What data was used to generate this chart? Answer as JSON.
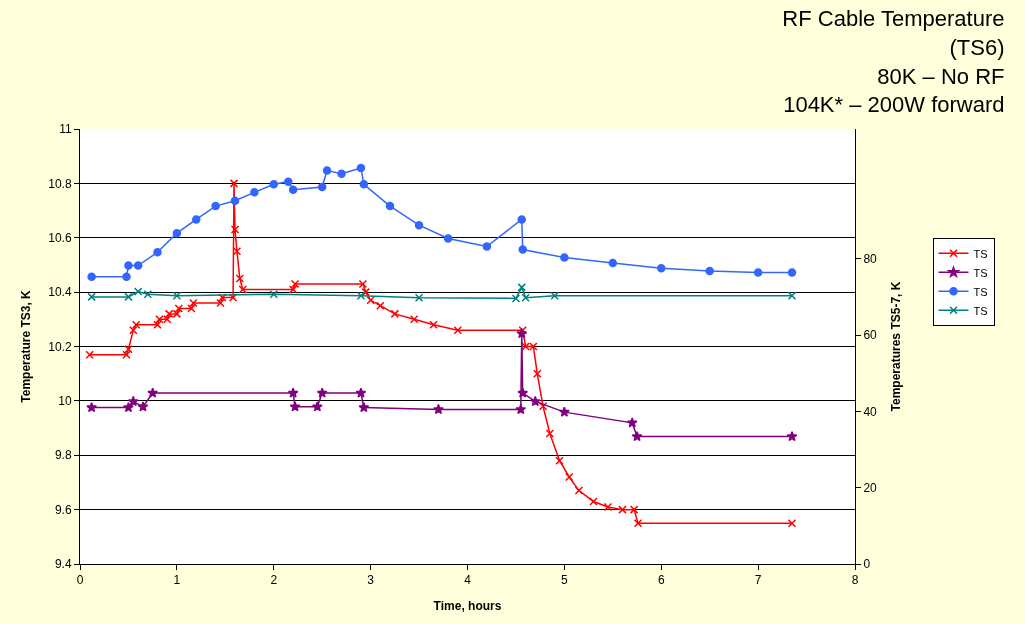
{
  "chart_data": {
    "type": "line",
    "title": "RF Cable Temperature\n(TS6)\n80K – No RF\n104K* – 200W forward",
    "xlabel": "Time, hours",
    "ylabel": "Temperature TS3, K",
    "y2label": "Temperatures TS5-7, K",
    "xlim": [
      0,
      8
    ],
    "xticks": [
      0,
      1,
      2,
      3,
      4,
      5,
      6,
      7,
      8
    ],
    "ylim": [
      9.4,
      11
    ],
    "yticks": [
      9.4,
      9.6,
      9.8,
      10,
      10.2,
      10.4,
      10.6,
      10.8,
      11
    ],
    "y2lim": [
      0,
      114
    ],
    "y2ticks": [
      0,
      20,
      40,
      60,
      80
    ],
    "grid": "y",
    "legend": "right",
    "series": [
      {
        "name": "TS",
        "color": "#ff0000",
        "marker": "cross",
        "x": [
          0.1,
          0.48,
          0.5,
          0.55,
          0.58,
          0.8,
          0.82,
          0.9,
          0.92,
          1.0,
          1.02,
          1.15,
          1.17,
          1.45,
          1.47,
          1.58,
          1.59,
          1.6,
          1.62,
          1.65,
          1.68,
          2.2,
          2.22,
          2.92,
          2.95,
          3.0,
          3.1,
          3.25,
          3.45,
          3.65,
          3.9,
          4.57,
          4.6,
          4.68,
          4.72,
          4.78,
          4.85,
          4.95,
          5.05,
          5.15,
          5.3,
          5.45,
          5.6,
          5.72,
          5.76,
          7.35
        ],
        "values": [
          10.17,
          10.17,
          10.19,
          10.26,
          10.28,
          10.28,
          10.3,
          10.3,
          10.32,
          10.32,
          10.34,
          10.34,
          10.36,
          10.36,
          10.38,
          10.38,
          10.8,
          10.63,
          10.55,
          10.45,
          10.41,
          10.41,
          10.43,
          10.43,
          10.4,
          10.37,
          10.35,
          10.32,
          10.3,
          10.28,
          10.26,
          10.26,
          10.2,
          10.2,
          10.1,
          9.98,
          9.88,
          9.78,
          9.72,
          9.67,
          9.63,
          9.61,
          9.6,
          9.6,
          9.55,
          9.55
        ]
      },
      {
        "name": "TS",
        "color": "#800080",
        "marker": "star",
        "axis": "y2",
        "x": [
          0.12,
          0.5,
          0.55,
          0.65,
          0.75,
          2.2,
          2.22,
          2.45,
          2.5,
          2.9,
          2.93,
          3.7,
          4.55,
          4.56,
          4.57,
          4.7,
          5.0,
          5.7,
          5.75,
          7.35
        ],
        "values": [
          41,
          41,
          42.6,
          41.2,
          44.8,
          44.8,
          41.2,
          41.2,
          44.8,
          44.8,
          41,
          40.5,
          40.5,
          60.4,
          44.8,
          42.6,
          39.8,
          37,
          33.4,
          33.4
        ]
      },
      {
        "name": "TS",
        "color": "#3366ff",
        "marker": "circle",
        "axis": "y2",
        "x": [
          0.12,
          0.48,
          0.5,
          0.6,
          0.8,
          1.0,
          1.2,
          1.4,
          1.6,
          1.8,
          2.0,
          2.15,
          2.2,
          2.5,
          2.55,
          2.7,
          2.9,
          2.93,
          3.2,
          3.5,
          3.8,
          4.2,
          4.56,
          4.57,
          5.0,
          5.5,
          6.0,
          6.5,
          7.0,
          7.35
        ],
        "values": [
          75.3,
          75.3,
          78.2,
          78.2,
          81.7,
          86.7,
          90.3,
          93.8,
          95.2,
          97.4,
          99.5,
          100.2,
          98.1,
          98.8,
          103.1,
          102.3,
          103.8,
          99.5,
          93.8,
          88.8,
          85.3,
          83.2,
          90.3,
          82.4,
          80.3,
          78.9,
          77.5,
          76.8,
          76.4,
          76.4
        ]
      },
      {
        "name": "TS",
        "color": "#008080",
        "marker": "cross",
        "axis": "y2",
        "x": [
          0.12,
          0.5,
          0.6,
          0.7,
          1.0,
          2.0,
          2.9,
          3.5,
          4.5,
          4.56,
          4.6,
          4.9,
          7.35
        ],
        "values": [
          70,
          70,
          71.4,
          70.7,
          70.3,
          70.7,
          70.3,
          69.8,
          69.6,
          72.5,
          69.8,
          70.3,
          70.3
        ]
      }
    ]
  }
}
